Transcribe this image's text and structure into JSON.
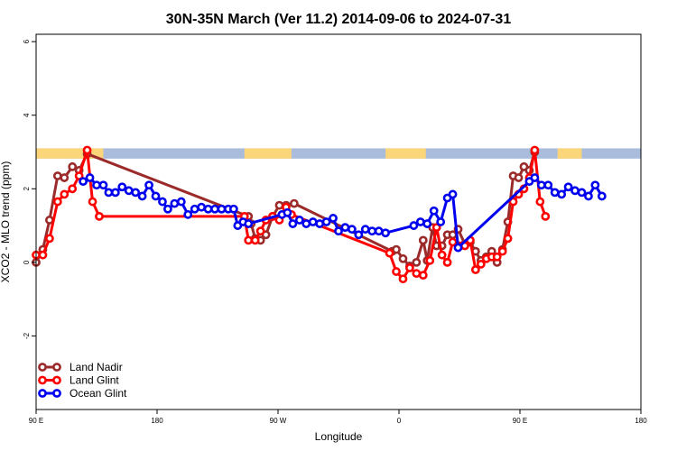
{
  "chart_data": {
    "type": "line",
    "title": "30N-35N March (Ver 11.2)   2014-09-06 to 2024-07-31",
    "xlabel": "Longitude",
    "ylabel": "XCO2 - MLO trend (ppm)",
    "x_axis": {
      "description": "Longitude running eastward from 90 E through 180, 90 W, 0 and 90 E to 180",
      "range_deg_east_of_90E": [
        0,
        450
      ],
      "ticks": [
        {
          "pos": 0,
          "label": "90 E"
        },
        {
          "pos": 90,
          "label": "180"
        },
        {
          "pos": 180,
          "label": "90 W"
        },
        {
          "pos": 270,
          "label": "0"
        },
        {
          "pos": 360,
          "label": "90 E"
        },
        {
          "pos": 450,
          "label": "180"
        }
      ]
    },
    "y_axis": {
      "range": [
        -4,
        6.2
      ],
      "ticks": [
        {
          "value": -2,
          "label": "-2"
        },
        {
          "value": 0,
          "label": "0"
        },
        {
          "value": 2,
          "label": "2"
        },
        {
          "value": 4,
          "label": "4"
        },
        {
          "value": 6,
          "label": "6"
        }
      ]
    },
    "grid": false,
    "legend_position": "bottom-left",
    "land_ocean_mask": {
      "y_range": [
        2.82,
        3.1
      ],
      "land_color": "#fad57a",
      "ocean_color": "#a9bcdb",
      "land_segments": [
        [
          0,
          50
        ],
        [
          155,
          190
        ],
        [
          260,
          290
        ],
        [
          388,
          406
        ]
      ]
    },
    "series": [
      {
        "name": "Land Nadir",
        "color": "#9b2a2a",
        "points": [
          [
            0,
            0.0
          ],
          [
            5,
            0.35
          ],
          [
            10,
            1.15
          ],
          [
            16,
            2.35
          ],
          [
            21,
            2.3
          ],
          [
            27,
            2.6
          ],
          [
            32,
            2.5
          ],
          [
            38,
            2.95
          ],
          [
            158,
            1.25
          ],
          [
            160,
            1.05
          ],
          [
            163,
            0.65
          ],
          [
            167,
            0.6
          ],
          [
            171,
            0.75
          ],
          [
            176,
            1.25
          ],
          [
            181,
            1.55
          ],
          [
            186,
            1.55
          ],
          [
            192,
            1.6
          ],
          [
            265,
            0.3
          ],
          [
            268,
            0.35
          ],
          [
            273,
            0.1
          ],
          [
            278,
            -0.1
          ],
          [
            283,
            0.0
          ],
          [
            288,
            0.6
          ],
          [
            291,
            0.05
          ],
          [
            295,
            0.95
          ],
          [
            298,
            0.45
          ],
          [
            302,
            0.45
          ],
          [
            306,
            0.75
          ],
          [
            310,
            0.75
          ],
          [
            314,
            0.9
          ],
          [
            319,
            0.5
          ],
          [
            323,
            0.55
          ],
          [
            327,
            0.3
          ],
          [
            331,
            0.05
          ],
          [
            335,
            0.15
          ],
          [
            339,
            0.3
          ],
          [
            343,
            0.0
          ],
          [
            347,
            0.35
          ],
          [
            351,
            1.1
          ],
          [
            355,
            2.35
          ],
          [
            359,
            2.3
          ],
          [
            363,
            2.6
          ],
          [
            367,
            2.5
          ],
          [
            371,
            3.0
          ]
        ]
      },
      {
        "name": "Land Glint",
        "color": "#ff0000",
        "points": [
          [
            0,
            0.2
          ],
          [
            5,
            0.2
          ],
          [
            10,
            0.65
          ],
          [
            16,
            1.65
          ],
          [
            21,
            1.85
          ],
          [
            27,
            2.0
          ],
          [
            32,
            2.35
          ],
          [
            38,
            3.05
          ],
          [
            42,
            1.65
          ],
          [
            47,
            1.25
          ],
          [
            155,
            1.25
          ],
          [
            158,
            0.6
          ],
          [
            163,
            0.6
          ],
          [
            167,
            0.85
          ],
          [
            171,
            1.15
          ],
          [
            176,
            1.25
          ],
          [
            181,
            1.15
          ],
          [
            186,
            1.5
          ],
          [
            190,
            1.3
          ],
          [
            263,
            0.25
          ],
          [
            268,
            -0.25
          ],
          [
            273,
            -0.45
          ],
          [
            278,
            -0.15
          ],
          [
            283,
            -0.3
          ],
          [
            288,
            -0.35
          ],
          [
            293,
            0.05
          ],
          [
            298,
            0.95
          ],
          [
            302,
            0.2
          ],
          [
            306,
            0.0
          ],
          [
            310,
            0.55
          ],
          [
            315,
            0.45
          ],
          [
            319,
            0.45
          ],
          [
            323,
            0.6
          ],
          [
            327,
            -0.2
          ],
          [
            331,
            -0.05
          ],
          [
            335,
            0.1
          ],
          [
            339,
            0.15
          ],
          [
            343,
            0.15
          ],
          [
            347,
            0.3
          ],
          [
            351,
            0.65
          ],
          [
            355,
            1.65
          ],
          [
            359,
            1.85
          ],
          [
            363,
            2.0
          ],
          [
            367,
            2.3
          ],
          [
            371,
            3.05
          ],
          [
            375,
            1.65
          ],
          [
            379,
            1.25
          ]
        ]
      },
      {
        "name": "Ocean Glint",
        "color": "#0000ee",
        "points": [
          [
            35,
            2.2
          ],
          [
            40,
            2.3
          ],
          [
            45,
            2.1
          ],
          [
            50,
            2.1
          ],
          [
            54,
            1.9
          ],
          [
            59,
            1.9
          ],
          [
            64,
            2.05
          ],
          [
            69,
            1.95
          ],
          [
            74,
            1.9
          ],
          [
            79,
            1.8
          ],
          [
            84,
            2.1
          ],
          [
            89,
            1.8
          ],
          [
            94,
            1.65
          ],
          [
            98,
            1.45
          ],
          [
            103,
            1.6
          ],
          [
            108,
            1.65
          ],
          [
            113,
            1.3
          ],
          [
            118,
            1.45
          ],
          [
            123,
            1.5
          ],
          [
            128,
            1.45
          ],
          [
            133,
            1.45
          ],
          [
            138,
            1.45
          ],
          [
            143,
            1.45
          ],
          [
            147,
            1.45
          ],
          [
            150,
            1.0
          ],
          [
            154,
            1.1
          ],
          [
            158,
            1.05
          ],
          [
            183,
            1.3
          ],
          [
            187,
            1.35
          ],
          [
            191,
            1.05
          ],
          [
            196,
            1.15
          ],
          [
            201,
            1.05
          ],
          [
            206,
            1.1
          ],
          [
            211,
            1.05
          ],
          [
            216,
            1.1
          ],
          [
            221,
            1.2
          ],
          [
            225,
            0.85
          ],
          [
            230,
            0.95
          ],
          [
            235,
            0.9
          ],
          [
            240,
            0.75
          ],
          [
            245,
            0.9
          ],
          [
            250,
            0.85
          ],
          [
            255,
            0.85
          ],
          [
            260,
            0.8
          ],
          [
            281,
            1.0
          ],
          [
            286,
            1.1
          ],
          [
            291,
            1.05
          ],
          [
            296,
            1.4
          ],
          [
            301,
            1.1
          ],
          [
            306,
            1.75
          ],
          [
            310,
            1.85
          ],
          [
            314,
            0.4
          ],
          [
            367,
            2.2
          ],
          [
            371,
            2.3
          ],
          [
            376,
            2.1
          ],
          [
            381,
            2.1
          ],
          [
            386,
            1.9
          ],
          [
            391,
            1.85
          ],
          [
            396,
            2.05
          ],
          [
            401,
            1.95
          ],
          [
            406,
            1.9
          ],
          [
            411,
            1.8
          ],
          [
            416,
            2.1
          ],
          [
            421,
            1.8
          ]
        ]
      }
    ]
  }
}
